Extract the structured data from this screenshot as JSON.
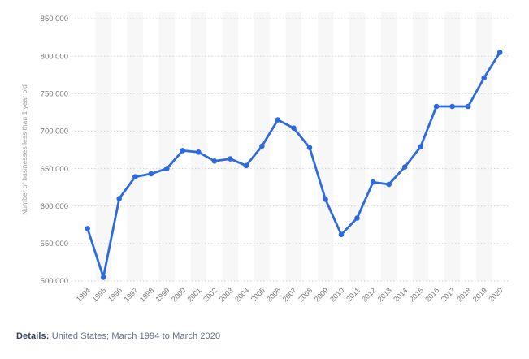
{
  "details": {
    "label": "Details:",
    "text": " United States; March 1994 to March 2020"
  },
  "chart_data": {
    "type": "line",
    "title": "",
    "xlabel": "",
    "ylabel": "Number of businesses less than 1 year old",
    "categories": [
      "1994",
      "1995",
      "1996",
      "1997",
      "1998",
      "1999",
      "2000",
      "2001",
      "2002",
      "2003",
      "2004",
      "2005",
      "2006",
      "2007",
      "2008",
      "2009",
      "2010",
      "2011",
      "2012",
      "2013",
      "2014",
      "2015",
      "2016",
      "2017",
      "2018",
      "2019",
      "2020"
    ],
    "values": [
      570000,
      505000,
      610000,
      639000,
      643000,
      650000,
      674000,
      672000,
      660000,
      663000,
      654000,
      680000,
      715000,
      704000,
      678000,
      609000,
      562000,
      584000,
      632000,
      629000,
      652000,
      679000,
      733000,
      733000,
      733000,
      771000,
      805000
    ],
    "ylim": [
      500000,
      850000
    ],
    "ytick_interval": 50000,
    "ytick_labels": [
      "850 000",
      "800 000",
      "750 000",
      "700 000",
      "650 000",
      "600 000",
      "550 000",
      "500 000"
    ],
    "grid": "horizontal-dotted",
    "legend": "none",
    "colors": {
      "line": "#2C6ADE",
      "point": "#2C6ADE",
      "band": "#f7f7f7",
      "gridline": "#cccccc",
      "tick_text": "#757575",
      "axis_title": "#9b9b9b"
    }
  }
}
